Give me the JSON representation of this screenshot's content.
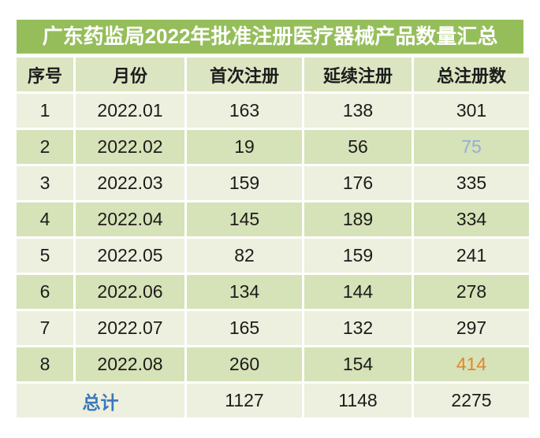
{
  "chart_data": {
    "type": "table",
    "title": "广东药监局2022年批准注册医疗器械产品数量汇总",
    "columns": [
      "序号",
      "月份",
      "首次注册",
      "延续注册",
      "总注册数"
    ],
    "rows": [
      [
        "1",
        "2022.01",
        "163",
        "138",
        "301"
      ],
      [
        "2",
        "2022.02",
        "19",
        "56",
        "75"
      ],
      [
        "3",
        "2022.03",
        "159",
        "176",
        "335"
      ],
      [
        "4",
        "2022.04",
        "145",
        "189",
        "334"
      ],
      [
        "5",
        "2022.05",
        "82",
        "159",
        "241"
      ],
      [
        "6",
        "2022.06",
        "134",
        "144",
        "278"
      ],
      [
        "7",
        "2022.07",
        "165",
        "132",
        "297"
      ],
      [
        "8",
        "2022.08",
        "260",
        "154",
        "414"
      ]
    ],
    "footer": [
      "总计",
      "1127",
      "1148",
      "2275"
    ],
    "layout_hints": {
      "alternating_rows": true,
      "highlighted_cells": [
        {
          "row": 2,
          "column": "总注册数",
          "value": "75",
          "style": "blue"
        },
        {
          "row": 8,
          "column": "总注册数",
          "value": "414",
          "style": "orange"
        }
      ]
    }
  },
  "colors": {
    "banner_green": "#95be5b",
    "banner_text": "#ffffff",
    "header_bg": "#dbe5c2",
    "row_light_bg": "#edf0de",
    "row_dark_bg": "#d6e2b7",
    "body_text": "#1c1c1c",
    "highlight_blue": "#92aedd",
    "highlight_orange": "#e2862f",
    "footer_label_blue": "#3a78bb",
    "page_bg": "#ffffff"
  }
}
